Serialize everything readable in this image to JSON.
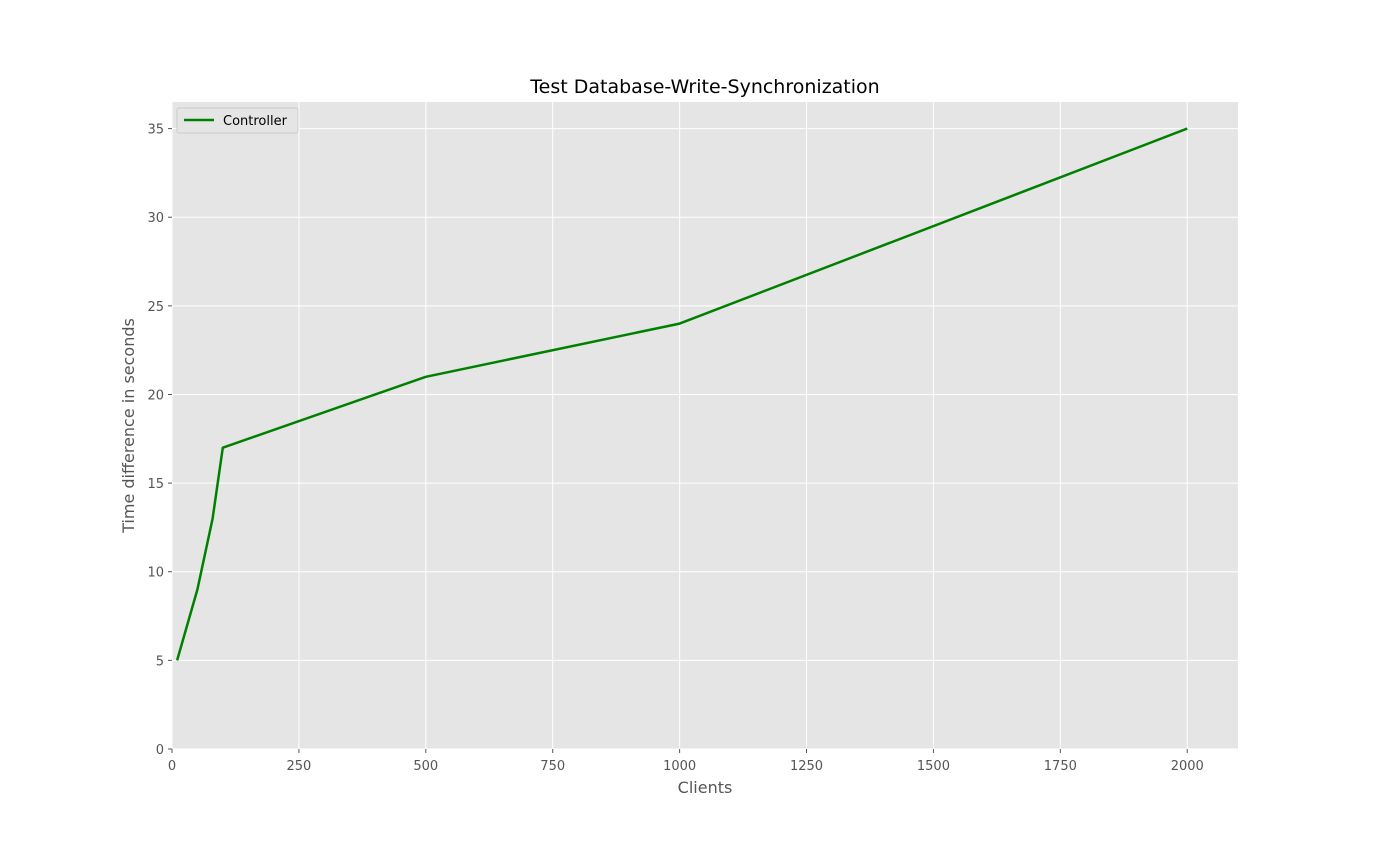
{
  "chart_data": {
    "type": "line",
    "title": "Test Database-Write-Synchronization",
    "xlabel": "Clients",
    "ylabel": "Time difference in seconds",
    "xlim": [
      0,
      2100
    ],
    "ylim": [
      0,
      36.5
    ],
    "xticks": [
      0,
      250,
      500,
      750,
      1000,
      1250,
      1500,
      1750,
      2000
    ],
    "yticks": [
      0,
      5,
      10,
      15,
      20,
      25,
      30,
      35
    ],
    "grid": true,
    "legend_position": "upper-left",
    "background": "#e5e5e5",
    "series": [
      {
        "name": "Controller",
        "color": "#008000",
        "x": [
          10,
          50,
          80,
          100,
          500,
          1000,
          2000
        ],
        "y": [
          5,
          9,
          13,
          17,
          21,
          24,
          35
        ]
      }
    ]
  }
}
